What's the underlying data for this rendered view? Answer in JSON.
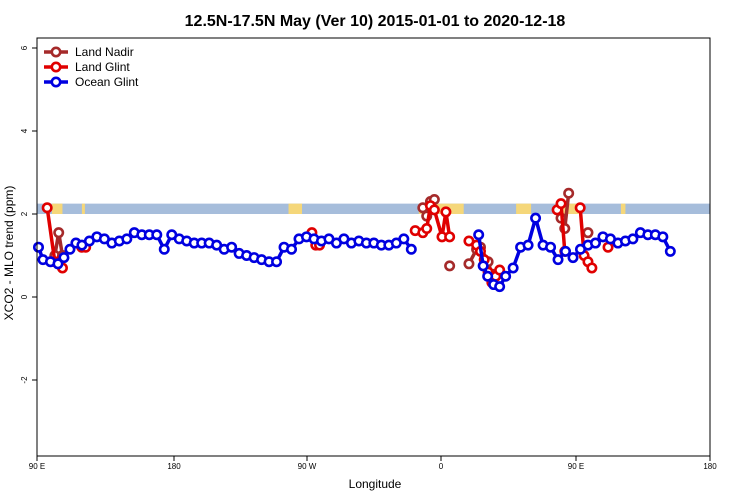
{
  "chart_data": {
    "type": "line",
    "title": "12.5N-17.5N May (Ver 10)   2015-01-01 to 2020-12-18",
    "xlabel": "Longitude",
    "ylabel": "XCO2 - MLO trend (ppm)",
    "xlim": [
      90,
      480
    ],
    "ylim": [
      -4,
      6.3
    ],
    "x_ticks": [
      {
        "value": 90,
        "label": "90 E"
      },
      {
        "value": 180,
        "label": "180"
      },
      {
        "value": 270,
        "label": "90 W"
      },
      {
        "value": 360,
        "label": "0"
      },
      {
        "value": 450,
        "label": "90 E"
      },
      {
        "value": 480,
        "label": "180"
      }
    ],
    "y_ticks": [
      {
        "value": -2,
        "label": "-2"
      },
      {
        "value": 0,
        "label": "0"
      },
      {
        "value": 2,
        "label": "2"
      },
      {
        "value": 4,
        "label": "4"
      },
      {
        "value": 6,
        "label": "6"
      }
    ],
    "legend_position": "top-left",
    "landmask_band": {
      "y_low": 2.0,
      "y_high": 2.25,
      "ocean_color": "#a6bddb",
      "land_color": "#f5d77a",
      "land_ranges": [
        [
          100,
          107
        ],
        [
          120,
          122
        ],
        [
          258,
          267
        ],
        [
          345,
          375
        ],
        [
          410,
          420
        ],
        [
          440,
          453
        ],
        [
          480,
          483
        ]
      ]
    },
    "series": [
      {
        "name": "Land Nadir",
        "color": "#a52a2a",
        "segments": [
          [
            [
              101.9,
              1.0
            ],
            [
              104.5,
              1.55
            ],
            [
              107.0,
              1.0
            ]
          ],
          [
            [
              347.7,
              2.15
            ],
            [
              350.3,
              1.95
            ],
            [
              352.8,
              2.3
            ],
            [
              355.4,
              2.35
            ]
          ],
          [
            [
              365.6,
              0.75
            ]
          ],
          [
            [
              378.5,
              0.8
            ],
            [
              383.6,
              1.15
            ],
            [
              386.2,
              1.2
            ],
            [
              391.3,
              0.85
            ],
            [
              393.8,
              0.55
            ],
            [
              396.4,
              0.5
            ],
            [
              399.0,
              0.6
            ]
          ],
          [
            [
              440.0,
              1.9
            ],
            [
              442.5,
              1.65
            ],
            [
              445.1,
              2.5
            ]
          ],
          [
            [
              458.0,
              1.55
            ]
          ]
        ]
      },
      {
        "name": "Land Glint",
        "color": "#e00000",
        "segments": [
          [
            [
              96.8,
              2.15
            ],
            [
              101.9,
              0.85
            ],
            [
              104.5,
              0.85
            ],
            [
              107.0,
              0.7
            ]
          ],
          [
            [
              119.9,
              1.2
            ],
            [
              122.5,
              1.2
            ]
          ],
          [
            [
              273.6,
              1.55
            ],
            [
              276.2,
              1.25
            ],
            [
              278.7,
              1.25
            ]
          ],
          [
            [
              342.6,
              1.6
            ],
            [
              347.7,
              1.55
            ],
            [
              350.3,
              1.65
            ],
            [
              352.8,
              2.2
            ],
            [
              355.4,
              2.1
            ],
            [
              360.5,
              1.45
            ],
            [
              363.1,
              2.05
            ],
            [
              365.6,
              1.45
            ]
          ],
          [
            [
              378.5,
              1.35
            ],
            [
              383.6,
              1.25
            ],
            [
              386.2,
              1.1
            ],
            [
              388.7,
              0.9
            ],
            [
              391.3,
              0.6
            ],
            [
              393.8,
              0.35
            ],
            [
              396.4,
              0.5
            ],
            [
              399.0,
              0.65
            ]
          ],
          [
            [
              437.4,
              2.1
            ],
            [
              440.0,
              2.25
            ],
            [
              442.5,
              1.1
            ]
          ],
          [
            [
              452.8,
              2.15
            ],
            [
              455.4,
              1.0
            ],
            [
              458.0,
              0.85
            ],
            [
              460.6,
              0.7
            ]
          ],
          [
            [
              471.4,
              1.2
            ]
          ]
        ]
      },
      {
        "name": "Ocean Glint",
        "color": "#0000e0",
        "points": [
          [
            91.0,
            1.2
          ],
          [
            94.0,
            0.9
          ],
          [
            99.0,
            0.85
          ],
          [
            104.0,
            0.8
          ],
          [
            108.0,
            0.95
          ],
          [
            112.0,
            1.15
          ],
          [
            116.0,
            1.3
          ],
          [
            120.0,
            1.25
          ],
          [
            125.0,
            1.35
          ],
          [
            130.0,
            1.45
          ],
          [
            135.0,
            1.4
          ],
          [
            140.0,
            1.3
          ],
          [
            145.0,
            1.35
          ],
          [
            150.0,
            1.4
          ],
          [
            155.0,
            1.55
          ],
          [
            160.0,
            1.5
          ],
          [
            165.0,
            1.5
          ],
          [
            170.0,
            1.5
          ],
          [
            175.0,
            1.15
          ],
          [
            180.0,
            1.5
          ],
          [
            185.0,
            1.4
          ],
          [
            190.0,
            1.35
          ],
          [
            195.0,
            1.3
          ],
          [
            200.0,
            1.3
          ],
          [
            205.0,
            1.3
          ],
          [
            210.0,
            1.25
          ],
          [
            215.0,
            1.15
          ],
          [
            220.0,
            1.2
          ],
          [
            225.0,
            1.05
          ],
          [
            230.0,
            1.0
          ],
          [
            235.0,
            0.95
          ],
          [
            240.0,
            0.9
          ],
          [
            245.0,
            0.85
          ],
          [
            250.0,
            0.85
          ],
          [
            255.0,
            1.2
          ],
          [
            260.0,
            1.15
          ],
          [
            265.0,
            1.4
          ],
          [
            270.0,
            1.45
          ],
          [
            275.0,
            1.4
          ],
          [
            280.0,
            1.35
          ],
          [
            285.0,
            1.4
          ],
          [
            290.0,
            1.3
          ],
          [
            295.0,
            1.4
          ],
          [
            300.0,
            1.3
          ],
          [
            305.0,
            1.35
          ],
          [
            310.0,
            1.3
          ],
          [
            315.0,
            1.3
          ],
          [
            320.0,
            1.25
          ],
          [
            325.0,
            1.25
          ],
          [
            330.0,
            1.3
          ],
          [
            335.0,
            1.4
          ],
          [
            340.0,
            1.15
          ],
          [
            385.0,
            1.5
          ],
          [
            388.0,
            0.75
          ],
          [
            391.0,
            0.5
          ],
          [
            395.0,
            0.3
          ],
          [
            399.0,
            0.25
          ],
          [
            403.0,
            0.5
          ],
          [
            408.0,
            0.7
          ],
          [
            413.0,
            1.2
          ],
          [
            418.0,
            1.25
          ],
          [
            423.0,
            1.9
          ],
          [
            428.0,
            1.25
          ],
          [
            433.0,
            1.2
          ],
          [
            438.0,
            0.9
          ],
          [
            443.0,
            1.1
          ],
          [
            448.0,
            0.95
          ],
          [
            453.0,
            1.15
          ],
          [
            458.0,
            1.25
          ],
          [
            463.0,
            1.3
          ],
          [
            468.0,
            1.45
          ],
          [
            473.0,
            1.4
          ],
          [
            478.0,
            1.3
          ],
          [
            483.0,
            1.35
          ],
          [
            488.0,
            1.4
          ],
          [
            493.0,
            1.55
          ],
          [
            498.0,
            1.5
          ],
          [
            503.0,
            1.5
          ],
          [
            508.0,
            1.45
          ],
          [
            513.0,
            1.1
          ]
        ]
      }
    ]
  }
}
